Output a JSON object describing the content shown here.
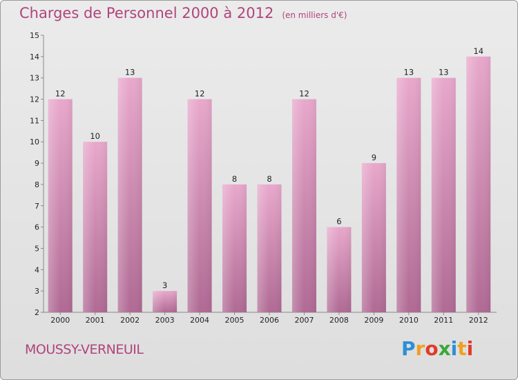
{
  "title": "Charges de Personnel 2000 à 2012",
  "subtitle": "(en milliers d'€)",
  "location": "MOUSSY-VERNEUIL",
  "logo": {
    "letters": [
      "P",
      "r",
      "o",
      "x",
      "i",
      "t",
      "i"
    ]
  },
  "colors": {
    "title": "#b0447c",
    "bar_top": "#e8a8cc",
    "bar_bottom": "#b06a94",
    "background": "#e4e4e4"
  },
  "chart_data": {
    "type": "bar",
    "title": "Charges de Personnel 2000 à 2012",
    "subtitle": "(en milliers d'€)",
    "categories": [
      "2000",
      "2001",
      "2002",
      "2003",
      "2004",
      "2005",
      "2006",
      "2007",
      "2008",
      "2009",
      "2010",
      "2011",
      "2012"
    ],
    "values": [
      12,
      10,
      13,
      3,
      12,
      8,
      8,
      12,
      6,
      9,
      13,
      13,
      14
    ],
    "ylim": [
      2,
      15
    ],
    "yticks": [
      2,
      3,
      4,
      5,
      6,
      7,
      8,
      9,
      10,
      11,
      12,
      13,
      14,
      15
    ],
    "grid": false,
    "xlabel": "",
    "ylabel": ""
  }
}
